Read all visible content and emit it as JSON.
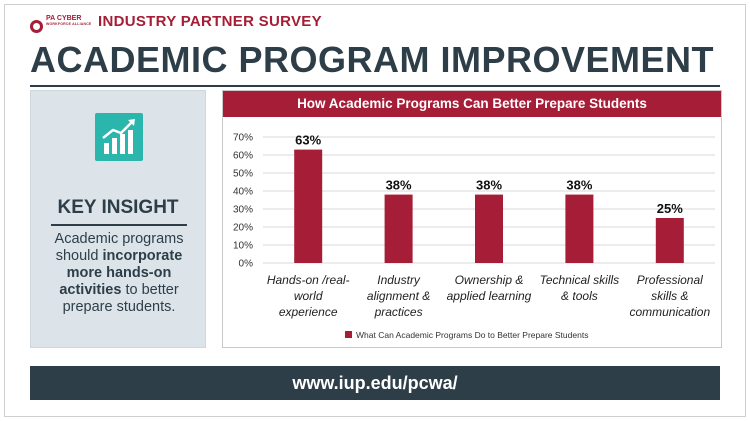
{
  "header": {
    "logo_text": "PA CYBER",
    "logo_subtext": "WORKFORCE ALLIANCE",
    "survey_label": "INDUSTRY PARTNER SURVEY",
    "title": "ACADEMIC PROGRAM IMPROVEMENT"
  },
  "insight": {
    "icon": "bar-chart-trend-icon",
    "heading": "KEY INSIGHT",
    "text_1": "Academic programs should ",
    "bold_1": "incorporate more hands-on activities",
    "text_2": " to better prepare students."
  },
  "chart_data": {
    "type": "bar",
    "title": "How Academic Programs Can Better Prepare Students",
    "categories": [
      [
        "Hands-on /real-",
        "world",
        "experience"
      ],
      [
        "Industry",
        "alignment &",
        "practices"
      ],
      [
        "Ownership &",
        "applied learning"
      ],
      [
        "Technical skills",
        "& tools"
      ],
      [
        "Professional",
        "skills &",
        "communication"
      ]
    ],
    "series": [
      {
        "name": "What Can Academic Programs Do to Better Prepare Students",
        "values": [
          63,
          38,
          38,
          38,
          25
        ]
      }
    ],
    "data_labels": [
      "63%",
      "38%",
      "38%",
      "38%",
      "25%"
    ],
    "ylim": [
      0,
      70
    ],
    "yticks": [
      "0%",
      "10%",
      "20%",
      "30%",
      "40%",
      "50%",
      "60%",
      "70%"
    ],
    "grid": true,
    "legend": "bottom",
    "colors": {
      "bar": "#a51d36"
    }
  },
  "footer": {
    "url": "www.iup.edu/pcwa/"
  },
  "colors": {
    "accent": "#a51d36",
    "dark": "#2d3e48",
    "panel": "#dce4ea",
    "icon_bg": "#2bb6ad"
  }
}
